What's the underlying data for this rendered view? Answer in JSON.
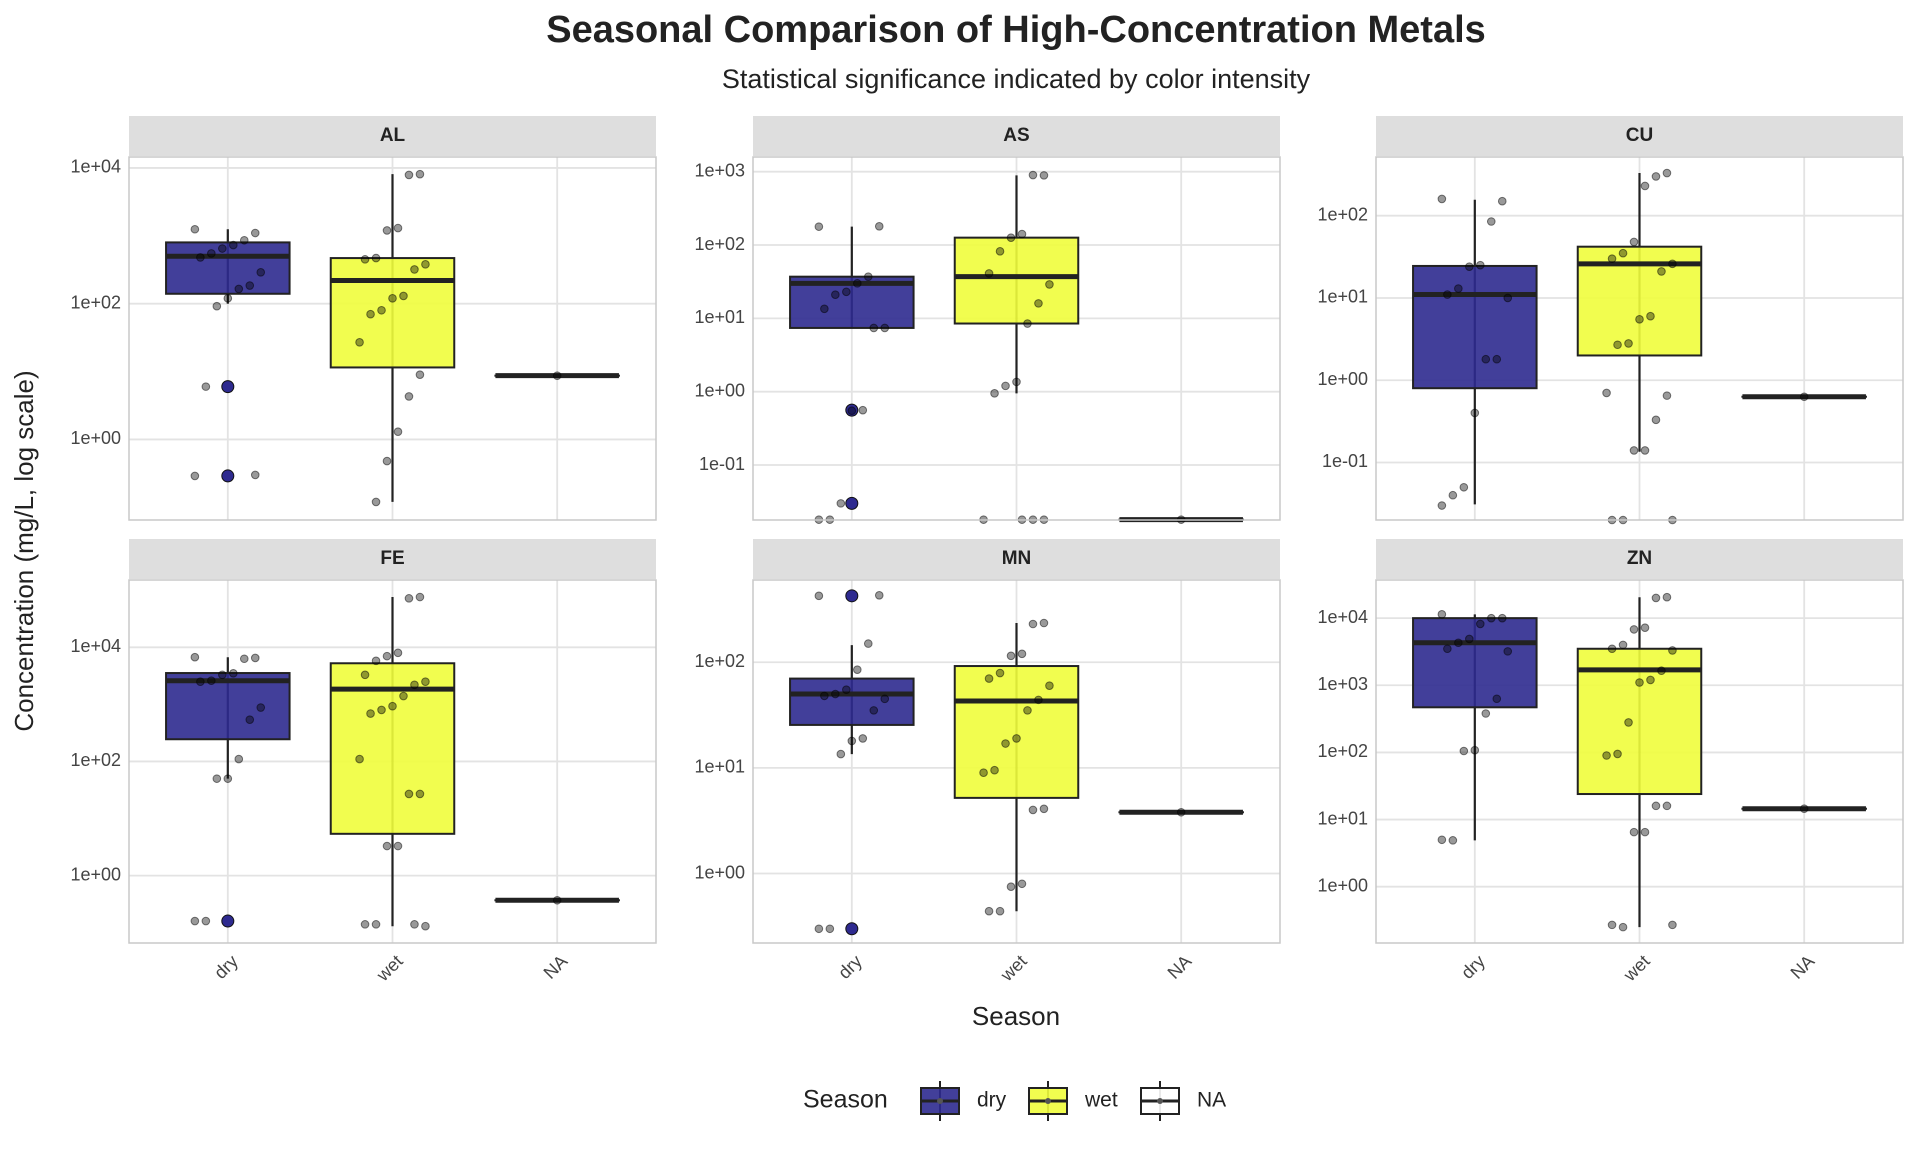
{
  "title": "Seasonal Comparison of High-Concentration Metals",
  "subtitle": "Statistical significance indicated by color intensity",
  "xlabel": "Season",
  "ylabel": "Concentration (mg/L, log scale)",
  "legend": {
    "title": "Season",
    "position": "bottom"
  },
  "categories": [
    "dry",
    "wet",
    "NA"
  ],
  "colors": [
    "#2e2a8f",
    "#effd3c",
    "#ffffff"
  ],
  "grid": true,
  "chart_data": [
    {
      "type": "box",
      "title": "AL",
      "yscale": "log",
      "ylim": [
        0.065,
        14500
      ],
      "yticks": [
        {
          "value": 1,
          "label": "1e+00"
        },
        {
          "value": 100,
          "label": "1e+02"
        },
        {
          "value": 10000,
          "label": "1e+04"
        }
      ],
      "boxes": [
        {
          "min": 100,
          "q1": 140,
          "median": 500,
          "q3": 800,
          "max": 1250,
          "outliers": [
            6,
            0.29
          ],
          "points": [
            1250,
            1100,
            860,
            730,
            650,
            550,
            480,
            290,
            185,
            165,
            120,
            92,
            6,
            0.29,
            0.3
          ]
        },
        {
          "min": 0.12,
          "q1": 11.5,
          "median": 220,
          "q3": 470,
          "max": 8100,
          "outliers": [],
          "points": [
            8100,
            7900,
            1300,
            1200,
            470,
            450,
            380,
            320,
            130,
            120,
            80,
            70,
            27,
            9,
            4.3,
            1.3,
            0.48,
            0.12
          ]
        },
        {
          "min": 8.7,
          "q1": 8.7,
          "median": 8.7,
          "q3": 8.7,
          "max": 8.7,
          "outliers": [],
          "points": [
            8.7
          ]
        }
      ]
    },
    {
      "type": "box",
      "title": "AS",
      "yscale": "log",
      "ylim": [
        0.0178,
        1585
      ],
      "yticks": [
        {
          "value": 0.1,
          "label": "1e-01"
        },
        {
          "value": 1,
          "label": "1e+00"
        },
        {
          "value": 10,
          "label": "1e+01"
        },
        {
          "value": 100,
          "label": "1e+02"
        },
        {
          "value": 1000,
          "label": "1e+03"
        }
      ],
      "boxes": [
        {
          "min": 7.4,
          "q1": 7.4,
          "median": 30,
          "q3": 37,
          "max": 178,
          "outliers": [
            0.56,
            0.03
          ],
          "points": [
            178,
            180,
            37,
            30,
            23,
            21,
            13.5,
            7.4,
            7.4,
            0.56,
            0.55,
            0.03,
            0.018,
            0.018
          ]
        },
        {
          "min": 0.95,
          "q1": 8.5,
          "median": 37,
          "q3": 126,
          "max": 890,
          "outliers": [],
          "points": [
            890,
            900,
            141,
            126,
            82,
            41,
            29,
            16,
            8.5,
            1.36,
            1.2,
            0.95,
            0.018,
            0.018,
            0.018,
            0.018
          ]
        },
        {
          "min": 0.018,
          "q1": 0.018,
          "median": 0.018,
          "q3": 0.018,
          "max": 0.018,
          "outliers": [],
          "points": [
            0.018
          ]
        }
      ]
    },
    {
      "type": "box",
      "title": "CU",
      "yscale": "log",
      "ylim": [
        0.02,
        517
      ],
      "yticks": [
        {
          "value": 0.1,
          "label": "1e-01"
        },
        {
          "value": 1,
          "label": "1e+00"
        },
        {
          "value": 10,
          "label": "1e+01"
        },
        {
          "value": 100,
          "label": "1e+02"
        }
      ],
      "boxes": [
        {
          "min": 0.031,
          "q1": 0.8,
          "median": 11,
          "q3": 24.5,
          "max": 156,
          "outliers": [],
          "points": [
            160,
            150,
            85,
            25,
            24,
            13,
            11,
            10,
            1.8,
            1.8,
            0.4,
            0.05,
            0.04,
            0.03
          ]
        },
        {
          "min": 0.135,
          "q1": 2,
          "median": 26,
          "q3": 42,
          "max": 330,
          "outliers": [],
          "points": [
            330,
            300,
            230,
            48,
            35,
            30,
            26,
            21,
            6,
            5.5,
            2.8,
            2.7,
            0.7,
            0.65,
            0.33,
            0.14,
            0.14,
            0.02,
            0.02,
            0.02
          ]
        },
        {
          "min": 0.63,
          "q1": 0.63,
          "median": 0.63,
          "q3": 0.63,
          "max": 0.63,
          "outliers": [],
          "points": [
            0.63
          ]
        }
      ]
    },
    {
      "type": "box",
      "title": "FE",
      "yscale": "log",
      "ylim": [
        0.066,
        151000
      ],
      "yticks": [
        {
          "value": 1,
          "label": "1e+00"
        },
        {
          "value": 100,
          "label": "1e+02"
        },
        {
          "value": 10000,
          "label": "1e+04"
        }
      ],
      "boxes": [
        {
          "min": 50,
          "q1": 245,
          "median": 2600,
          "q3": 3540,
          "max": 6700,
          "outliers": [
            0.16
          ],
          "points": [
            6700,
            6500,
            6300,
            3500,
            3300,
            2600,
            2500,
            880,
            540,
            110,
            50,
            50,
            0.16,
            0.16
          ]
        },
        {
          "min": 0.13,
          "q1": 5.4,
          "median": 1850,
          "q3": 5250,
          "max": 76000,
          "outliers": [],
          "points": [
            76000,
            72000,
            8000,
            7000,
            5800,
            3300,
            2500,
            2200,
            1400,
            930,
            800,
            690,
            110,
            27,
            27,
            3.3,
            3.3,
            0.14,
            0.14,
            0.13,
            0.14
          ]
        },
        {
          "min": 0.37,
          "q1": 0.37,
          "median": 0.37,
          "q3": 0.37,
          "max": 0.37,
          "outliers": [],
          "points": [
            0.37
          ]
        }
      ]
    },
    {
      "type": "box",
      "title": "MN",
      "yscale": "log",
      "ylim": [
        0.22,
        600
      ],
      "yticks": [
        {
          "value": 1,
          "label": "1e+00"
        },
        {
          "value": 10,
          "label": "1e+01"
        },
        {
          "value": 100,
          "label": "1e+02"
        }
      ],
      "boxes": [
        {
          "min": 13.5,
          "q1": 25.5,
          "median": 50,
          "q3": 70,
          "max": 145,
          "outliers": [
            425,
            0.3
          ],
          "points": [
            425,
            430,
            150,
            85,
            55,
            50,
            48,
            45,
            35,
            19,
            18,
            13.5,
            0.3,
            0.3
          ]
        },
        {
          "min": 0.44,
          "q1": 5.2,
          "median": 43,
          "q3": 92,
          "max": 235,
          "outliers": [],
          "points": [
            235,
            230,
            120,
            115,
            79,
            70,
            60,
            44,
            35,
            19,
            17,
            9.5,
            9,
            4.1,
            4,
            0.8,
            0.75,
            0.44,
            0.44
          ]
        },
        {
          "min": 3.8,
          "q1": 3.8,
          "median": 3.8,
          "q3": 3.8,
          "max": 3.8,
          "outliers": [],
          "points": [
            3.8
          ]
        }
      ]
    },
    {
      "type": "box",
      "title": "ZN",
      "yscale": "log",
      "ylim": [
        0.145,
        37000
      ],
      "yticks": [
        {
          "value": 1,
          "label": "1e+00"
        },
        {
          "value": 10,
          "label": "1e+01"
        },
        {
          "value": 100,
          "label": "1e+02"
        },
        {
          "value": 1000,
          "label": "1e+03"
        },
        {
          "value": 10000,
          "label": "1e+04"
        }
      ],
      "boxes": [
        {
          "min": 4.9,
          "q1": 470,
          "median": 4300,
          "q3": 10000,
          "max": 11400,
          "outliers": [],
          "points": [
            11400,
            10000,
            10000,
            8200,
            4900,
            4300,
            3500,
            3200,
            630,
            380,
            108,
            105,
            4.9,
            5
          ]
        },
        {
          "min": 0.25,
          "q1": 24,
          "median": 1700,
          "q3": 3500,
          "max": 20500,
          "outliers": [],
          "points": [
            20500,
            20000,
            7200,
            6800,
            4000,
            3500,
            3300,
            1650,
            1200,
            1100,
            280,
            95,
            90,
            16,
            16,
            6.5,
            6.5,
            0.25,
            0.27,
            0.27
          ]
        },
        {
          "min": 14.5,
          "q1": 14.5,
          "median": 14.5,
          "q3": 14.5,
          "max": 14.5,
          "outliers": [],
          "points": [
            14.5
          ]
        }
      ]
    }
  ]
}
